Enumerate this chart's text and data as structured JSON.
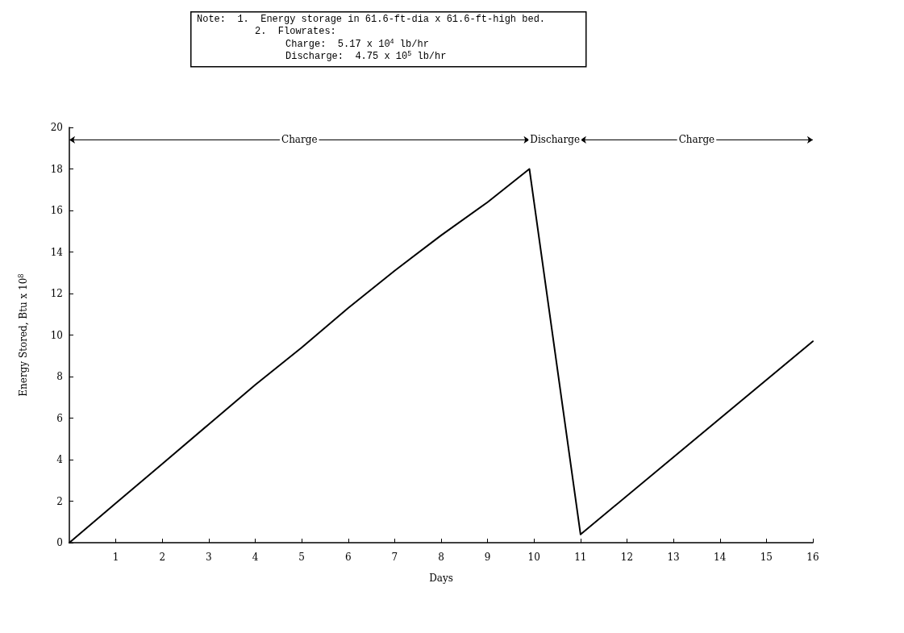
{
  "chart_data": {
    "type": "line",
    "xlabel": "Days",
    "ylabel": "Energy Stored, Btu x 10$^{8}$",
    "x": [
      0,
      1,
      2,
      3,
      4,
      5,
      6,
      7,
      8,
      9,
      9.9,
      11,
      16
    ],
    "values": [
      0,
      1.9,
      3.8,
      5.7,
      7.6,
      9.4,
      11.3,
      13.1,
      14.8,
      16.4,
      18.0,
      0.4,
      9.7
    ],
    "color": "#000000",
    "marker": "none",
    "line_style": "solid",
    "grid": false,
    "xlim": [
      0,
      16
    ],
    "xticks": [
      1,
      2,
      3,
      4,
      5,
      6,
      7,
      8,
      9,
      10,
      11,
      12,
      13,
      14,
      15,
      16
    ],
    "ylim": [
      0,
      20
    ],
    "yticks": [
      0,
      2,
      4,
      6,
      8,
      10,
      12,
      14,
      16,
      18,
      20
    ],
    "annotations": [
      "Note:  1.  Energy storage in 61.6-ft-dia x 61.6-ft-high bed.",
      "2.  Flowrates:",
      "Charge:  5.17 x 10$^{4}$ lb/hr",
      "Discharge:  4.75 x 10$^{5}$ lb/hr",
      "Charge",
      "Discharge",
      "Charge"
    ]
  }
}
